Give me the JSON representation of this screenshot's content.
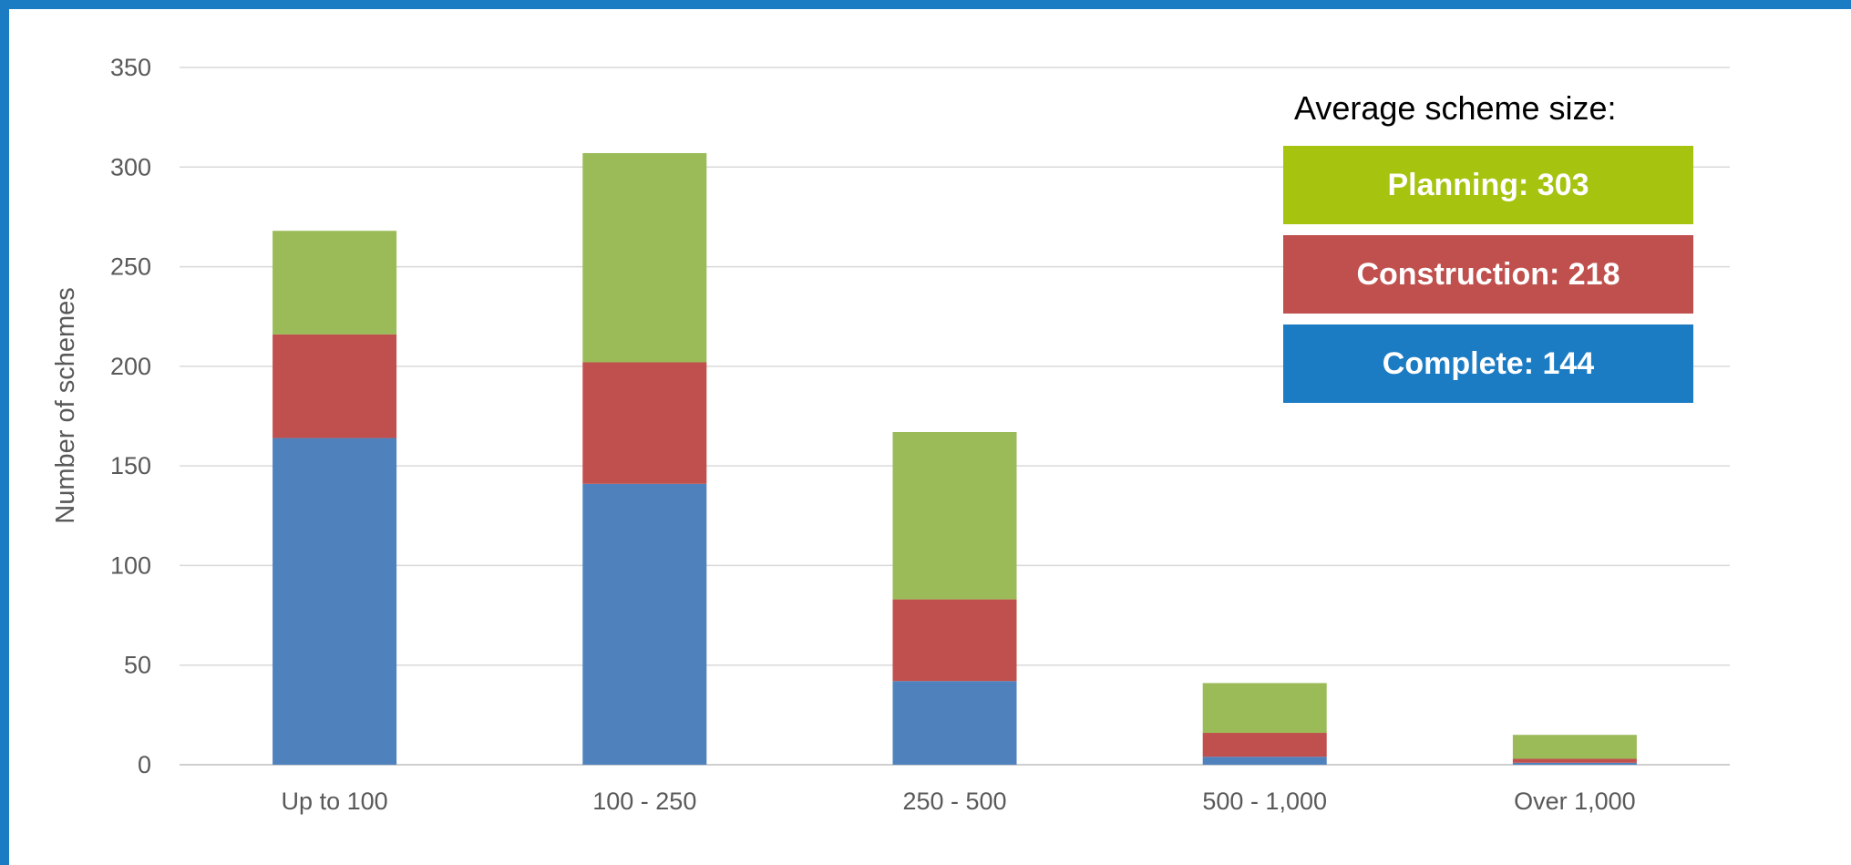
{
  "chart_data": {
    "type": "bar",
    "stacked": true,
    "categories": [
      "Up to 100",
      "100 - 250",
      "250 - 500",
      "500 - 1,000",
      "Over 1,000"
    ],
    "series": [
      {
        "name": "Complete",
        "color": "#4f81bd",
        "values": [
          164,
          141,
          42,
          4,
          1
        ]
      },
      {
        "name": "Construction",
        "color": "#c0504d",
        "values": [
          52,
          61,
          41,
          12,
          2
        ]
      },
      {
        "name": "Planning",
        "color": "#9bbb59",
        "values": [
          52,
          105,
          84,
          25,
          12
        ]
      }
    ],
    "ylabel": "Number of schemes",
    "xlabel": "",
    "ylim": [
      0,
      350
    ],
    "yticks": [
      0,
      50,
      100,
      150,
      200,
      250,
      300,
      350
    ],
    "grid": true
  },
  "info_panel": {
    "title": "Average scheme size:",
    "boxes": [
      {
        "label": "Planning: 303",
        "color": "#a5c30f"
      },
      {
        "label": "Construction: 218",
        "color": "#c0504d"
      },
      {
        "label": "Complete: 144",
        "color": "#1c7cc3"
      }
    ]
  },
  "frame_color": "#1c7cc3"
}
